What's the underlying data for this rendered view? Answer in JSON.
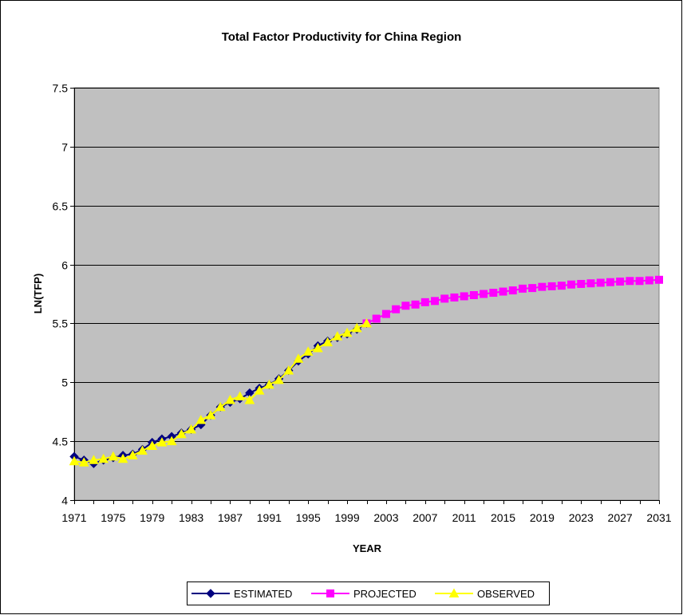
{
  "chart_data": {
    "type": "line",
    "title": "Total Factor Productivity for China Region",
    "xlabel": "YEAR",
    "ylabel": "LN(TFP)",
    "xlim": [
      1971,
      2031
    ],
    "ylim": [
      4,
      7.5
    ],
    "x_ticks": [
      "1971",
      "1975",
      "1979",
      "1983",
      "1987",
      "1991",
      "1995",
      "1999",
      "2003",
      "2007",
      "2011",
      "2015",
      "2019",
      "2023",
      "2027",
      "2031"
    ],
    "y_ticks": [
      "4",
      "4.5",
      "5",
      "5.5",
      "6",
      "6.5",
      "7",
      "7.5"
    ],
    "grid": true,
    "legend_position": "bottom",
    "series": [
      {
        "name": "ESTIMATED",
        "color": "#000080",
        "marker": "diamond",
        "x": [
          1971,
          1972,
          1973,
          1974,
          1975,
          1976,
          1977,
          1978,
          1979,
          1980,
          1981,
          1982,
          1983,
          1984,
          1985,
          1986,
          1987,
          1988,
          1989,
          1990,
          1991,
          1992,
          1993,
          1994,
          1995,
          1996,
          1997,
          1998,
          1999,
          2000,
          2001
        ],
        "values": [
          4.37,
          4.34,
          4.31,
          4.34,
          4.36,
          4.38,
          4.39,
          4.43,
          4.49,
          4.52,
          4.54,
          4.57,
          4.6,
          4.64,
          4.72,
          4.79,
          4.83,
          4.86,
          4.91,
          4.95,
          4.98,
          5.03,
          5.1,
          5.18,
          5.24,
          5.31,
          5.35,
          5.38,
          5.41,
          5.45,
          5.5
        ]
      },
      {
        "name": "PROJECTED",
        "color": "#ff00ff",
        "marker": "square",
        "x": [
          2001,
          2002,
          2003,
          2004,
          2005,
          2006,
          2007,
          2008,
          2009,
          2010,
          2011,
          2012,
          2013,
          2014,
          2015,
          2016,
          2017,
          2018,
          2019,
          2020,
          2021,
          2022,
          2023,
          2024,
          2025,
          2026,
          2027,
          2028,
          2029,
          2030,
          2031
        ],
        "values": [
          5.5,
          5.54,
          5.58,
          5.62,
          5.65,
          5.66,
          5.68,
          5.69,
          5.71,
          5.72,
          5.73,
          5.74,
          5.75,
          5.76,
          5.77,
          5.78,
          5.795,
          5.8,
          5.81,
          5.815,
          5.82,
          5.83,
          5.835,
          5.84,
          5.845,
          5.85,
          5.855,
          5.86,
          5.86,
          5.865,
          5.87
        ]
      },
      {
        "name": "OBSERVED",
        "color": "#ffff00",
        "marker": "triangle",
        "x": [
          1971,
          1972,
          1973,
          1974,
          1975,
          1976,
          1977,
          1978,
          1979,
          1980,
          1981,
          1982,
          1983,
          1984,
          1985,
          1986,
          1987,
          1988,
          1989,
          1990,
          1991,
          1992,
          1993,
          1994,
          1995,
          1996,
          1997,
          1998,
          1999,
          2000,
          2001
        ],
        "values": [
          4.33,
          4.32,
          4.34,
          4.35,
          4.37,
          4.35,
          4.38,
          4.42,
          4.46,
          4.49,
          4.5,
          4.56,
          4.6,
          4.68,
          4.72,
          4.79,
          4.85,
          4.88,
          4.85,
          4.93,
          4.98,
          5.02,
          5.1,
          5.2,
          5.26,
          5.29,
          5.34,
          5.39,
          5.42,
          5.46,
          5.5
        ]
      }
    ]
  }
}
